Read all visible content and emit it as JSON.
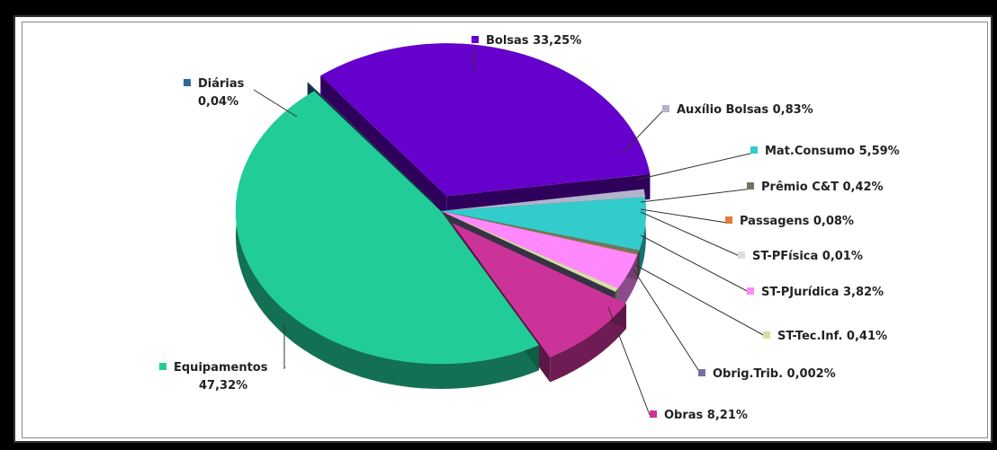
{
  "chart_data": {
    "type": "pie",
    "title": "",
    "slices": [
      {
        "name": "Bolsas",
        "value": 33.25,
        "label": "Bolsas 33,25%",
        "color": "#6600cc"
      },
      {
        "name": "Auxílio Bolsas",
        "value": 0.83,
        "label": "Auxílio Bolsas   0,83%",
        "color": "#b3b3cc"
      },
      {
        "name": "Mat.Consumo",
        "value": 5.59,
        "label": "Mat.Consumo 5,59%",
        "color": "#33cccc"
      },
      {
        "name": "Prêmio C&T",
        "value": 0.42,
        "label": "Prêmio C&T  0,42%",
        "color": "#6b7a5e"
      },
      {
        "name": "Passagens",
        "value": 0.08,
        "label": "Passagens  0,08%",
        "color": "#e07b39"
      },
      {
        "name": "ST-PFísica",
        "value": 0.01,
        "label": "ST-PFísica  0,01%",
        "color": "#dddddd"
      },
      {
        "name": "ST-PJurídica",
        "value": 3.82,
        "label": "ST-PJurídica 3,82%",
        "color": "#ff88ff"
      },
      {
        "name": "ST-Tec.Inf.",
        "value": 0.41,
        "label": "ST-Tec.Inf. 0,41%",
        "color": "#d6e0a0"
      },
      {
        "name": "Obrig.Trib.",
        "value": 0.002,
        "label": "Obrig.Trib.  0,002%",
        "color": "#7a6f9a"
      },
      {
        "name": "Obras",
        "value": 8.21,
        "label": "Obras  8,21%",
        "color": "#cc3399"
      },
      {
        "name": "Equipamentos",
        "value": 47.32,
        "label": "Equipamentos\n47,32%",
        "color": "#22cc99"
      },
      {
        "name": "Diárias",
        "value": 0.04,
        "label": "Diárias\n0,04%",
        "color": "#336699"
      }
    ]
  }
}
